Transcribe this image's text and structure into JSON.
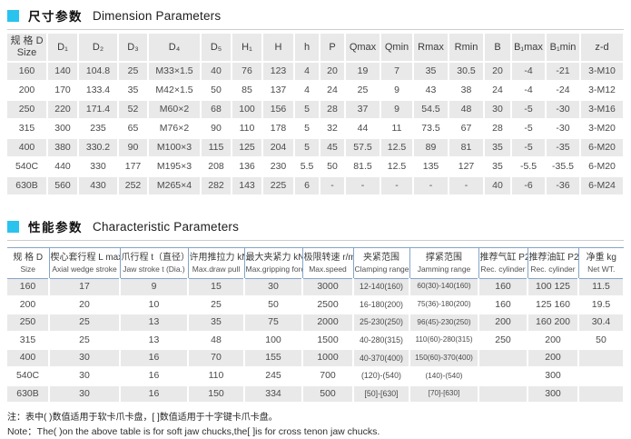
{
  "accent_color": "#29c3ee",
  "section_dimension": {
    "title_zh": "尺寸参数",
    "title_en": "Dimension Parameters",
    "table": {
      "headers": [
        [
          "规 格 D",
          "Size"
        ],
        [
          "D₁"
        ],
        [
          "D₂"
        ],
        [
          "D₃"
        ],
        [
          "D₄"
        ],
        [
          "D₅"
        ],
        [
          "H₁"
        ],
        [
          "H"
        ],
        [
          "h"
        ],
        [
          "P"
        ],
        [
          "Qmax"
        ],
        [
          "Qmin"
        ],
        [
          "Rmax"
        ],
        [
          "Rmin"
        ],
        [
          "B"
        ],
        [
          "B₁max"
        ],
        [
          "B₁min"
        ],
        [
          "z-d"
        ]
      ],
      "rows": [
        [
          "160",
          "140",
          "104.8",
          "25",
          "M33×1.5",
          "40",
          "76",
          "123",
          "4",
          "20",
          "19",
          "7",
          "35",
          "30.5",
          "20",
          "-4",
          "-21",
          "3-M10"
        ],
        [
          "200",
          "170",
          "133.4",
          "35",
          "M42×1.5",
          "50",
          "85",
          "137",
          "4",
          "24",
          "25",
          "9",
          "43",
          "38",
          "24",
          "-4",
          "-24",
          "3-M12"
        ],
        [
          "250",
          "220",
          "171.4",
          "52",
          "M60×2",
          "68",
          "100",
          "156",
          "5",
          "28",
          "37",
          "9",
          "54.5",
          "48",
          "30",
          "-5",
          "-30",
          "3-M16"
        ],
        [
          "315",
          "300",
          "235",
          "65",
          "M76×2",
          "90",
          "110",
          "178",
          "5",
          "32",
          "44",
          "11",
          "73.5",
          "67",
          "28",
          "-5",
          "-30",
          "3-M20"
        ],
        [
          "400",
          "380",
          "330.2",
          "90",
          "M100×3",
          "115",
          "125",
          "204",
          "5",
          "45",
          "57.5",
          "12.5",
          "89",
          "81",
          "35",
          "-5",
          "-35",
          "6-M20"
        ],
        [
          "540C",
          "440",
          "330",
          "177",
          "M195×3",
          "208",
          "136",
          "230",
          "5.5",
          "50",
          "81.5",
          "12.5",
          "135",
          "127",
          "35",
          "-5.5",
          "-35.5",
          "6-M20"
        ],
        [
          "630B",
          "560",
          "430",
          "252",
          "M265×4",
          "282",
          "143",
          "225",
          "6",
          "-",
          "-",
          "-",
          "-",
          "-",
          "40",
          "-6",
          "-36",
          "6-M24"
        ]
      ]
    }
  },
  "section_characteristic": {
    "title_zh": "性能参数",
    "title_en": "Characteristic Parameters",
    "table": {
      "headers": [
        [
          "规 格 D",
          "Size"
        ],
        [
          "楔心套行程 L max",
          "Axial wedge stroke"
        ],
        [
          "爪行程 t（直径）",
          "Jaw stroke t (Dia.)"
        ],
        [
          "许用推拉力  kN",
          "Max.draw pull"
        ],
        [
          "最大夹紧力 kN",
          "Max.gripping force"
        ],
        [
          "极限转速  r/min",
          "Max.speed"
        ],
        [
          "夹紧范围",
          "Clamping range"
        ],
        [
          "撑紧范围",
          "Jamming range"
        ],
        [
          "推荐气缸 P21",
          "Rec. cylinder"
        ],
        [
          "推荐油缸 P23",
          "Rec. cylinder"
        ],
        [
          "净重 kg",
          "Net WT."
        ]
      ],
      "rows": [
        [
          "160",
          "17",
          "9",
          "15",
          "30",
          "3000",
          "12-140(160)",
          "60(30)-140(160)",
          "160",
          "100 125",
          "11.5"
        ],
        [
          "200",
          "20",
          "10",
          "25",
          "50",
          "2500",
          "16-180(200)",
          "75(36)-180(200)",
          "160",
          "125 160",
          "19.5"
        ],
        [
          "250",
          "25",
          "13",
          "35",
          "75",
          "2000",
          "25-230(250)",
          "96(45)-230(250)",
          "200",
          "160 200",
          "30.4"
        ],
        [
          "315",
          "25",
          "13",
          "48",
          "100",
          "1500",
          "40-280(315)",
          "110(60)-280(315)",
          "250",
          "200",
          "50"
        ],
        [
          "400",
          "30",
          "16",
          "70",
          "155",
          "1000",
          "40-370(400)",
          "150(60)-370(400)",
          "",
          "200",
          ""
        ],
        [
          "540C",
          "30",
          "16",
          "110",
          "245",
          "700",
          "(120)-(540)",
          "(140)-(540)",
          "",
          "300",
          ""
        ],
        [
          "630B",
          "30",
          "16",
          "150",
          "334",
          "500",
          "[50]-[630]",
          "[70]-[630]",
          "",
          "300",
          ""
        ]
      ]
    }
  },
  "notes": {
    "zh": "注：表中(  )数值适用于软卡爪卡盘，[  ]数值适用于十字键卡爪卡盘。",
    "en": "Note：The(  )on the above table is for soft jaw chucks,the[  ]is for cross tenon jaw chucks."
  }
}
